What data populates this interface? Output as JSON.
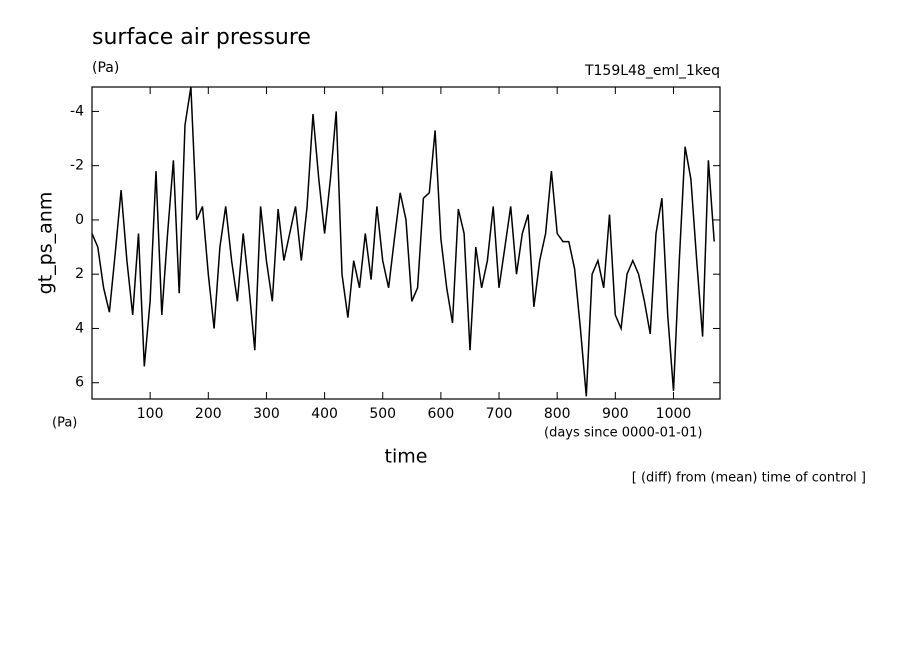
{
  "chart_data": {
    "type": "line",
    "title": "surface air pressure",
    "y_unit": "(Pa)",
    "subtitle": "T159L48_eml_1keq",
    "ylabel": "gt_ps_anm",
    "y_unit_bottom": "(Pa)",
    "xlabel": "time",
    "x_unit": "(days since 0000-01-01)",
    "note": "[ (diff) from (mean) time of control ]",
    "color": "#000000",
    "x": [
      0,
      10,
      20,
      30,
      40,
      50,
      60,
      70,
      80,
      90,
      100,
      110,
      120,
      130,
      140,
      150,
      160,
      170,
      180,
      190,
      200,
      210,
      220,
      230,
      240,
      250,
      260,
      270,
      280,
      290,
      300,
      310,
      320,
      330,
      340,
      350,
      360,
      370,
      380,
      390,
      400,
      410,
      420,
      430,
      440,
      450,
      460,
      470,
      480,
      490,
      500,
      510,
      520,
      530,
      540,
      550,
      560,
      570,
      580,
      590,
      600,
      610,
      620,
      630,
      640,
      650,
      660,
      670,
      680,
      690,
      700,
      710,
      720,
      730,
      740,
      750,
      760,
      770,
      780,
      790,
      800,
      810,
      820,
      830,
      840,
      850,
      860,
      870,
      880,
      890,
      900,
      910,
      920,
      930,
      940,
      950,
      960,
      970,
      980,
      990,
      1000,
      1010,
      1020,
      1030,
      1040,
      1050,
      1060,
      1070
    ],
    "values": [
      0.5,
      1,
      2.5,
      3.4,
      1.2,
      -1.1,
      1.5,
      3.5,
      0.5,
      5.4,
      3,
      -1.8,
      3.5,
      0.5,
      -2.2,
      2.7,
      -3.5,
      -4.9,
      0,
      -0.5,
      2,
      4,
      1,
      -0.5,
      1.5,
      3,
      0.5,
      2.5,
      4.8,
      -0.5,
      1.5,
      3,
      -0.4,
      1.5,
      0.5,
      -0.5,
      1.5,
      -0.5,
      -3.9,
      -1.5,
      0.5,
      -1.5,
      -4,
      2,
      3.6,
      1.5,
      2.5,
      0.5,
      2.2,
      -0.5,
      1.5,
      2.5,
      0.7,
      -1,
      0,
      3,
      2.5,
      -0.8,
      -1,
      -3.3,
      0.7,
      2.5,
      3.8,
      -0.4,
      0.5,
      4.8,
      1,
      2.5,
      1.5,
      -0.5,
      2.5,
      1,
      -0.5,
      2,
      0.5,
      -0.2,
      3.2,
      1.5,
      0.5,
      -1.8,
      0.5,
      0.8,
      0.8,
      1.8,
      4,
      6.5,
      2,
      1.5,
      2.5,
      -0.2,
      3.5,
      4,
      2,
      1.5,
      2,
      3,
      4.2,
      0.5,
      -0.8,
      3.5,
      6.3,
      1.5,
      -2.7,
      -1.5,
      1.5,
      4.3,
      -2.2,
      0.8
    ],
    "xlim": [
      0,
      1080
    ],
    "xticks": [
      100,
      200,
      300,
      400,
      500,
      600,
      700,
      800,
      900,
      1000
    ],
    "ylim": [
      6.6,
      -4.9
    ],
    "yticks": [
      -4,
      -2,
      0,
      2,
      4,
      6
    ]
  }
}
